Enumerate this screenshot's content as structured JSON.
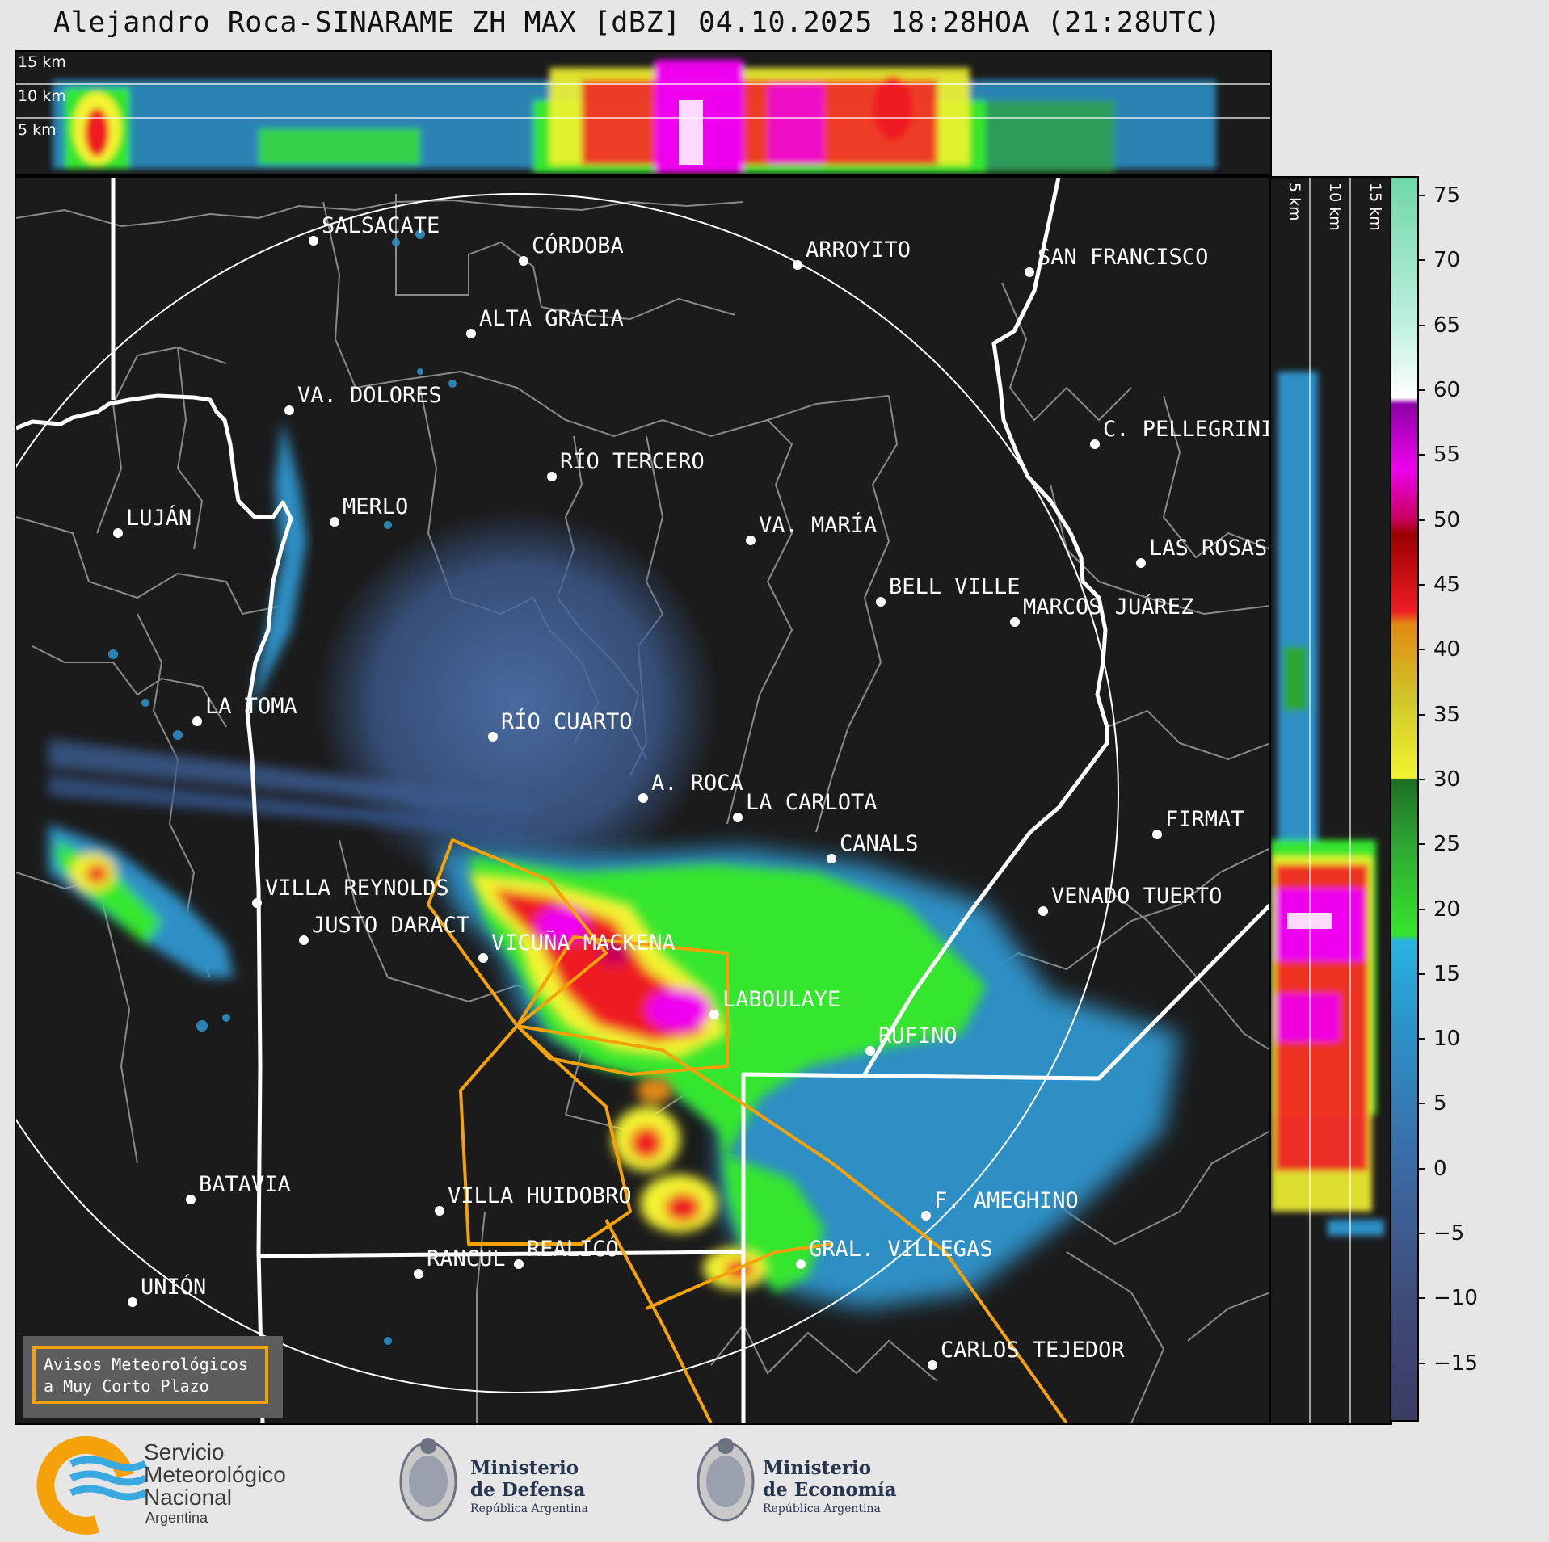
{
  "title": "Alejandro Roca-SINARAME ZH MAX [dBZ] 04.10.2025 18:28HOA (21:28UTC)",
  "top_panel": {
    "height_labels": [
      "15 km",
      "10 km",
      "5 km"
    ]
  },
  "side_panel": {
    "height_labels": [
      "5 km",
      "10 km",
      "15 km"
    ]
  },
  "colorbar": {
    "unit": "dBZ",
    "ticks": [
      "75",
      "70",
      "65",
      "60",
      "55",
      "50",
      "45",
      "40",
      "35",
      "30",
      "25",
      "20",
      "15",
      "10",
      "5",
      "0",
      "−5",
      "−10",
      "−15"
    ],
    "tick_values": [
      75,
      70,
      65,
      60,
      55,
      50,
      45,
      40,
      35,
      30,
      25,
      20,
      15,
      10,
      5,
      0,
      -5,
      -10,
      -15
    ],
    "range": [
      -19.5,
      76.5
    ],
    "gradient": [
      {
        "v": -19.5,
        "c": "#3b3b62"
      },
      {
        "v": -10,
        "c": "#3f4c7a"
      },
      {
        "v": 0,
        "c": "#3b6aa3"
      },
      {
        "v": 10,
        "c": "#2d8fc4"
      },
      {
        "v": 17.5,
        "c": "#27b2e0"
      },
      {
        "v": 18,
        "c": "#36e62e"
      },
      {
        "v": 25,
        "c": "#2fa534"
      },
      {
        "v": 30,
        "c": "#1d6e22"
      },
      {
        "v": 30.1,
        "c": "#f3f330"
      },
      {
        "v": 36,
        "c": "#cfc82a"
      },
      {
        "v": 42,
        "c": "#e08a12"
      },
      {
        "v": 43,
        "c": "#ee1c24"
      },
      {
        "v": 49,
        "c": "#9a0000"
      },
      {
        "v": 50,
        "c": "#c8005a"
      },
      {
        "v": 54,
        "c": "#ee00ee"
      },
      {
        "v": 59,
        "c": "#8f00a8"
      },
      {
        "v": 59.5,
        "c": "#ffffff"
      },
      {
        "v": 65,
        "c": "#bff0e0"
      },
      {
        "v": 76.5,
        "c": "#6fd6a8"
      }
    ]
  },
  "cities": [
    {
      "name": "SALSACATE"
    },
    {
      "name": "CÓRDOBA"
    },
    {
      "name": "ARROYITO"
    },
    {
      "name": "SAN FRANCISCO"
    },
    {
      "name": "ALTA GRACIA"
    },
    {
      "name": "VA. DOLORES"
    },
    {
      "name": "C. PELLEGRINI"
    },
    {
      "name": "RÍO TERCERO"
    },
    {
      "name": "LUJÁN"
    },
    {
      "name": "MERLO"
    },
    {
      "name": "VA. MARÍA"
    },
    {
      "name": "LAS ROSAS"
    },
    {
      "name": "BELL VILLE"
    },
    {
      "name": "MARCOS JUÁREZ"
    },
    {
      "name": "LA TOMA"
    },
    {
      "name": "RÍO CUARTO"
    },
    {
      "name": "A. ROCA"
    },
    {
      "name": "LA CARLOTA"
    },
    {
      "name": "FIRMAT"
    },
    {
      "name": "CANALS"
    },
    {
      "name": "VILLA REYNOLDS"
    },
    {
      "name": "VENADO TUERTO"
    },
    {
      "name": "JUSTO DARACT"
    },
    {
      "name": "VICUÑA MACKENA"
    },
    {
      "name": "LABOULAYE"
    },
    {
      "name": "RUFINO"
    },
    {
      "name": "BATAVIA"
    },
    {
      "name": "VILLA HUIDOBRO"
    },
    {
      "name": "F. AMEGHINO"
    },
    {
      "name": "RANCUL"
    },
    {
      "name": "REALICÓ"
    },
    {
      "name": "GRAL. VILLEGAS"
    },
    {
      "name": "UNIÓN"
    },
    {
      "name": "CARLOS TEJEDOR"
    }
  ],
  "legend": {
    "text": "Avisos Meteorológicos\na Muy Corto Plazo",
    "border_color": "#f5a20a"
  },
  "logos": {
    "smn": {
      "line1": "Servicio",
      "line2": "Meteorológico",
      "line3": "Nacional",
      "line4": "Argentina"
    },
    "defensa": {
      "line1": "Ministerio",
      "line2": "de Defensa",
      "line3": "República Argentina"
    },
    "economia": {
      "line1": "Ministerio",
      "line2": "de Economía",
      "line3": "República Argentina"
    }
  }
}
